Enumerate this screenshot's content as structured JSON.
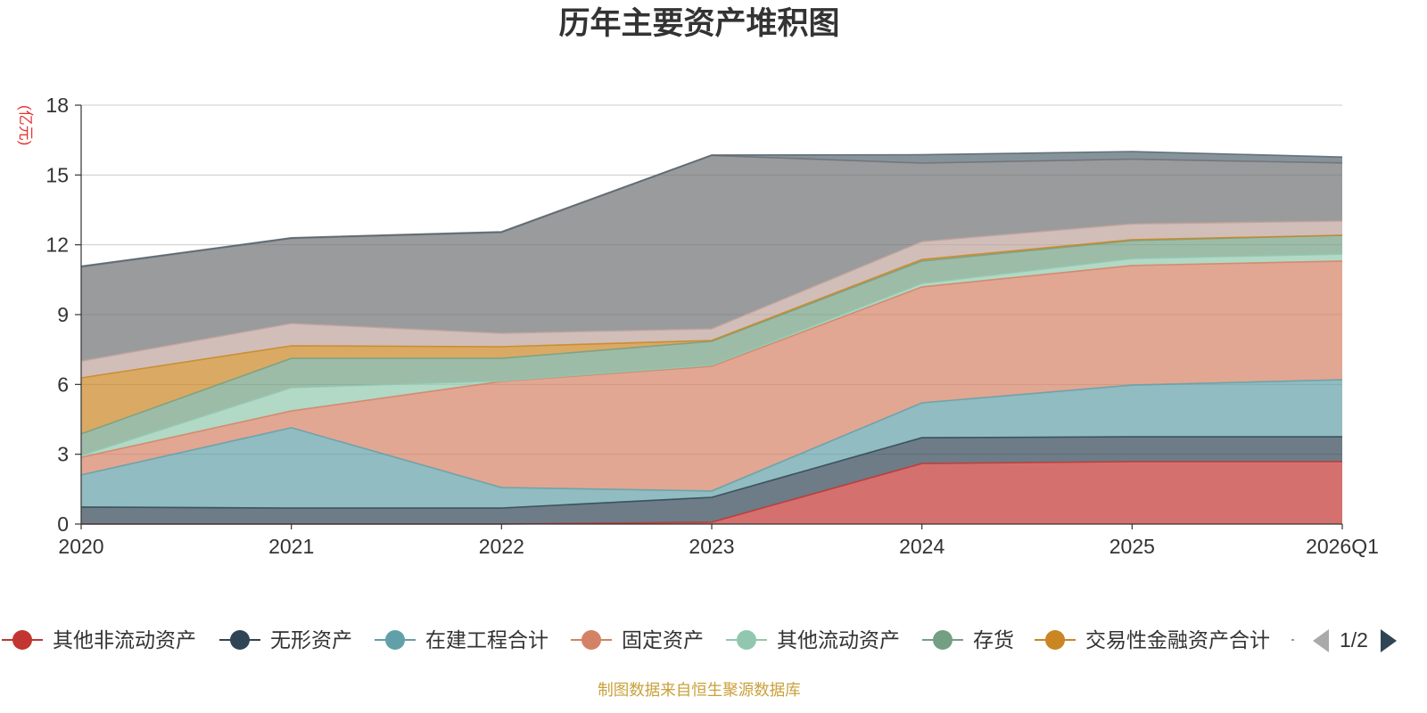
{
  "source_note": "制图数据来自恒生聚源数据库",
  "legend": {
    "page": "1/2"
  },
  "chart_data": {
    "type": "area",
    "stacked": true,
    "title": "历年主要资产堆积图",
    "ylabel": "(亿元)",
    "categories": [
      "2020",
      "2021",
      "2022",
      "2023",
      "2024",
      "2025",
      "2026Q1"
    ],
    "ylim": [
      0,
      18
    ],
    "yticks": [
      0,
      3,
      6,
      9,
      12,
      15,
      18
    ],
    "grid": true,
    "series": [
      {
        "name": "其他非流动资产",
        "color": "#c23531",
        "values": [
          0,
          0,
          0,
          0.08,
          2.6,
          2.68,
          2.68
        ]
      },
      {
        "name": "无形资产",
        "color": "#2f4554",
        "values": [
          0.73,
          0.69,
          0.69,
          1.07,
          1.11,
          1.07,
          1.07
        ]
      },
      {
        "name": "在建工程合计",
        "color": "#61a0a8",
        "values": [
          1.38,
          3.45,
          0.88,
          0.27,
          1.5,
          2.22,
          2.45
        ]
      },
      {
        "name": "固定资产",
        "color": "#d48265",
        "values": [
          0.76,
          0.72,
          4.56,
          5.36,
          4.98,
          5.14,
          5.1
        ]
      },
      {
        "name": "其他流动资产",
        "color": "#91c7ae",
        "values": [
          0.08,
          1.0,
          0.02,
          0.05,
          0.15,
          0.3,
          0.3
        ]
      },
      {
        "name": "存货",
        "color": "#749f83",
        "values": [
          0.92,
          1.26,
          0.97,
          1.02,
          0.96,
          0.77,
          0.81
        ]
      },
      {
        "name": "交易性金融资产合计",
        "color": "#ca8622",
        "values": [
          2.41,
          0.54,
          0.5,
          0.04,
          0.07,
          0.04,
          0.0
        ]
      },
      {
        "color": "#bda29a",
        "values": [
          0.72,
          0.96,
          0.58,
          0.5,
          0.77,
          0.68,
          0.61
        ]
      },
      {
        "color": "#6e7074",
        "values": [
          4.05,
          3.66,
          4.33,
          7.45,
          3.37,
          2.78,
          2.5
        ]
      },
      {
        "color": "#546570",
        "values": [
          0.03,
          0.02,
          0.03,
          0.02,
          0.36,
          0.33,
          0.25
        ]
      }
    ]
  }
}
